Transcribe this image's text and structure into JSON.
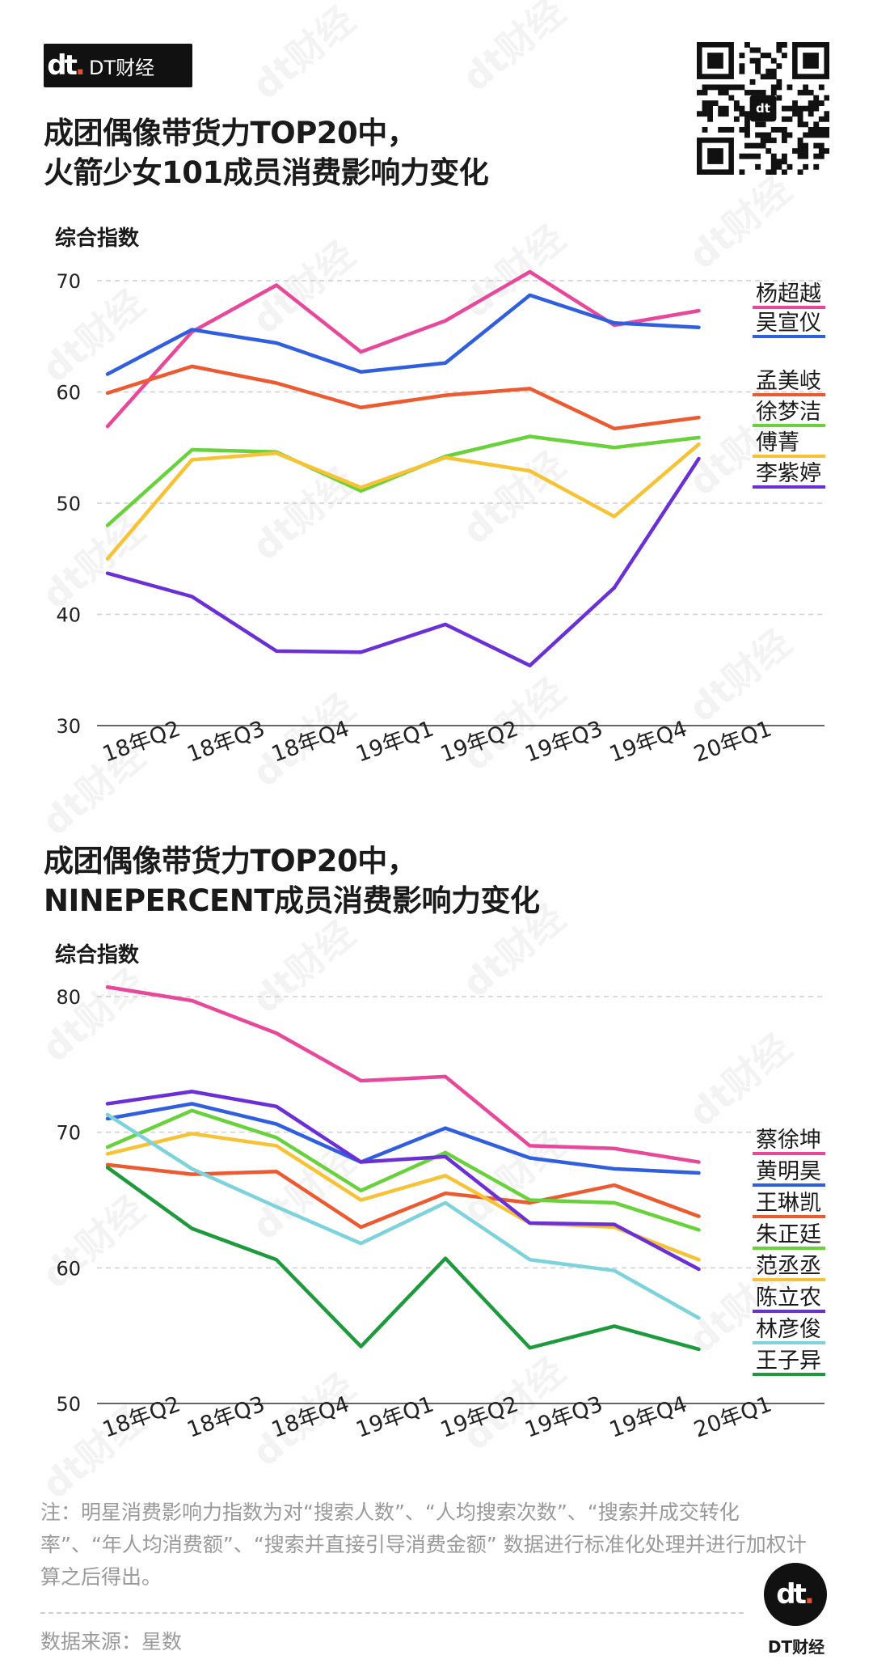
{
  "brand": {
    "mark": "dt",
    "name": "DT财经"
  },
  "charts": [
    {
      "title_lines": [
        "成团偶像带货力TOP20中，",
        "火箭少女101成员消费影响力变化"
      ],
      "ylabel": "综合指数"
    },
    {
      "title_lines": [
        "成团偶像带货力TOP20中，",
        "NINEPERCENT成员消费影响力变化"
      ],
      "ylabel": "综合指数"
    }
  ],
  "chart_data": [
    {
      "type": "line",
      "title": "成团偶像带货力TOP20中，火箭少女101成员消费影响力变化",
      "ylabel": "综合指数",
      "xlabel": "",
      "categories": [
        "18年Q2",
        "18年Q3",
        "18年Q4",
        "19年Q1",
        "19年Q2",
        "19年Q3",
        "19年Q4",
        "20年Q1"
      ],
      "ylim": [
        30,
        70
      ],
      "yticks": [
        30,
        40,
        50,
        60,
        70
      ],
      "grid": true,
      "series": [
        {
          "name": "杨超越",
          "color": "#e8479a",
          "values": [
            56.9,
            65.4,
            69.6,
            63.6,
            66.4,
            70.8,
            66.0,
            67.3
          ]
        },
        {
          "name": "吴宣仪",
          "color": "#2f5fe0",
          "values": [
            61.6,
            65.6,
            64.4,
            61.8,
            62.6,
            68.7,
            66.2,
            65.8
          ]
        },
        {
          "name": "孟美岐",
          "color": "#ee5a2f",
          "values": [
            59.9,
            62.3,
            60.8,
            58.6,
            59.7,
            60.3,
            56.7,
            57.7
          ]
        },
        {
          "name": "徐梦洁",
          "color": "#67d23a",
          "values": [
            48.0,
            54.8,
            54.6,
            51.1,
            54.2,
            56.0,
            55.0,
            55.9
          ]
        },
        {
          "name": "傅菁",
          "color": "#f7c233",
          "values": [
            45.0,
            53.9,
            54.5,
            51.4,
            54.1,
            52.9,
            48.8,
            55.3
          ]
        },
        {
          "name": "李紫婷",
          "color": "#6a2fd6",
          "values": [
            43.7,
            41.6,
            36.7,
            36.6,
            39.1,
            35.4,
            42.4,
            54.0
          ]
        }
      ]
    },
    {
      "type": "line",
      "title": "成团偶像带货力TOP20中，NINEPERCENT成员消费影响力变化",
      "ylabel": "综合指数",
      "xlabel": "",
      "categories": [
        "18年Q2",
        "18年Q3",
        "18年Q4",
        "19年Q1",
        "19年Q2",
        "19年Q3",
        "19年Q4",
        "20年Q1"
      ],
      "ylim": [
        50,
        80
      ],
      "yticks": [
        50,
        60,
        70,
        80
      ],
      "grid": true,
      "series": [
        {
          "name": "蔡徐坤",
          "color": "#e8479a",
          "values": [
            80.7,
            79.7,
            77.3,
            73.8,
            74.1,
            69.0,
            68.8,
            67.8
          ]
        },
        {
          "name": "黄明昊",
          "color": "#2f5fe0",
          "values": [
            71.0,
            72.1,
            70.6,
            67.8,
            70.3,
            68.1,
            67.3,
            67.0
          ]
        },
        {
          "name": "王琳凯",
          "color": "#ee5a2f",
          "values": [
            67.6,
            66.9,
            67.1,
            63.0,
            65.5,
            64.8,
            66.1,
            63.8
          ]
        },
        {
          "name": "朱正廷",
          "color": "#67d23a",
          "values": [
            68.9,
            71.6,
            69.6,
            65.7,
            68.5,
            65.0,
            64.8,
            62.8
          ]
        },
        {
          "name": "范丞丞",
          "color": "#f7c233",
          "values": [
            68.4,
            69.9,
            69.0,
            65.0,
            66.8,
            63.3,
            63.0,
            60.6
          ]
        },
        {
          "name": "陈立农",
          "color": "#6a2fd6",
          "values": [
            72.1,
            73.0,
            71.9,
            67.8,
            68.2,
            63.3,
            63.2,
            59.9
          ]
        },
        {
          "name": "林彦俊",
          "color": "#7dd3dc",
          "values": [
            71.3,
            67.3,
            64.5,
            61.8,
            64.8,
            60.6,
            59.8,
            56.3
          ]
        },
        {
          "name": "王子异",
          "color": "#1c9a3c",
          "values": [
            67.4,
            62.9,
            60.6,
            54.2,
            60.7,
            54.1,
            55.7,
            54.0
          ]
        }
      ]
    }
  ],
  "note": "注：明星消费影响力指数为对“搜索人数”、“人均搜索次数”、“搜索并成交转化率”、“年人均消费额”、“搜索并直接引导消费金额” 数据进行标准化处理并进行加权计算之后得出。",
  "source": "数据来源：星数",
  "footer_logo": {
    "mark": "dt",
    "caption": "DT财经"
  }
}
